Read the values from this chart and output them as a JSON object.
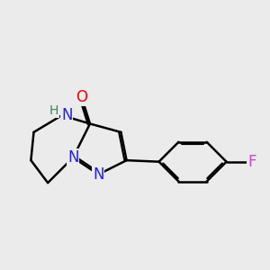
{
  "background_color": "#ebebeb",
  "bond_color": "#000000",
  "bond_width": 1.8,
  "atom_colors": {
    "N": "#2020ee",
    "O": "#ee0000",
    "F": "#cc44cc",
    "H": "#2e8b57",
    "C": "#000000"
  }
}
